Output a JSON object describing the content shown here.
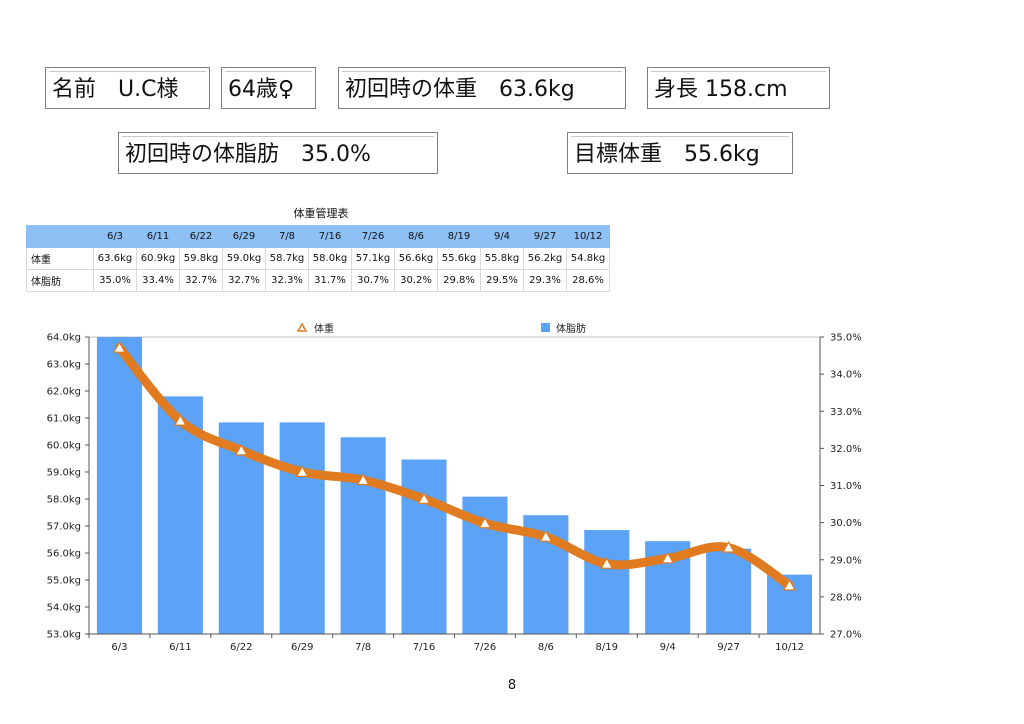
{
  "header": {
    "name": "名前　U.C様",
    "age": "64歳♀",
    "initial_weight": "初回時の体重　63.6kg",
    "height": "身長 158.cm",
    "initial_body_fat": "初回時の体脂肪　35.0%",
    "target_weight": "目標体重　55.6kg"
  },
  "table": {
    "title": "体重管理表",
    "dates": [
      "6/3",
      "6/11",
      "6/22",
      "6/29",
      "7/8",
      "7/16",
      "7/26",
      "8/6",
      "8/19",
      "9/4",
      "9/27",
      "10/12"
    ],
    "rows": [
      {
        "label": "体重",
        "values": [
          "63.6kg",
          "60.9kg",
          "59.8kg",
          "59.0kg",
          "58.7kg",
          "58.0kg",
          "57.1kg",
          "56.6kg",
          "55.6kg",
          "55.8kg",
          "56.2kg",
          "54.8kg"
        ]
      },
      {
        "label": "体脂肪",
        "values": [
          "35.0%",
          "33.4%",
          "32.7%",
          "32.7%",
          "32.3%",
          "31.7%",
          "30.7%",
          "30.2%",
          "29.8%",
          "29.5%",
          "29.3%",
          "28.6%"
        ]
      }
    ]
  },
  "chart_data": {
    "type": "bar",
    "categories": [
      "6/3",
      "6/11",
      "6/22",
      "6/29",
      "7/8",
      "7/16",
      "7/26",
      "8/6",
      "8/19",
      "9/4",
      "9/27",
      "10/12"
    ],
    "series": [
      {
        "name": "体重",
        "kind": "line",
        "axis": "left",
        "color": "#e07b1f",
        "marker_color": "#ffffff",
        "values": [
          63.6,
          60.9,
          59.8,
          59.0,
          58.7,
          58.0,
          57.1,
          56.6,
          55.6,
          55.8,
          56.2,
          54.8
        ]
      },
      {
        "name": "体脂肪",
        "kind": "bar",
        "axis": "right",
        "color": "#5ca2f7",
        "values": [
          35.0,
          33.4,
          32.7,
          32.7,
          32.3,
          31.7,
          30.7,
          30.2,
          29.8,
          29.5,
          29.3,
          28.6
        ]
      }
    ],
    "left_axis": {
      "range": [
        53.0,
        64.0
      ],
      "ticks": [
        "53.0kg",
        "54.0kg",
        "55.0kg",
        "56.0kg",
        "57.0kg",
        "58.0kg",
        "59.0kg",
        "60.0kg",
        "61.0kg",
        "62.0kg",
        "63.0kg",
        "64.0kg"
      ]
    },
    "right_axis": {
      "range": [
        27.0,
        35.0
      ],
      "ticks": [
        "27.0%",
        "28.0%",
        "29.0%",
        "30.0%",
        "31.0%",
        "32.0%",
        "33.0%",
        "34.0%",
        "35.0%"
      ]
    },
    "legend_placement": "top",
    "grid": false
  },
  "page_number": "8"
}
